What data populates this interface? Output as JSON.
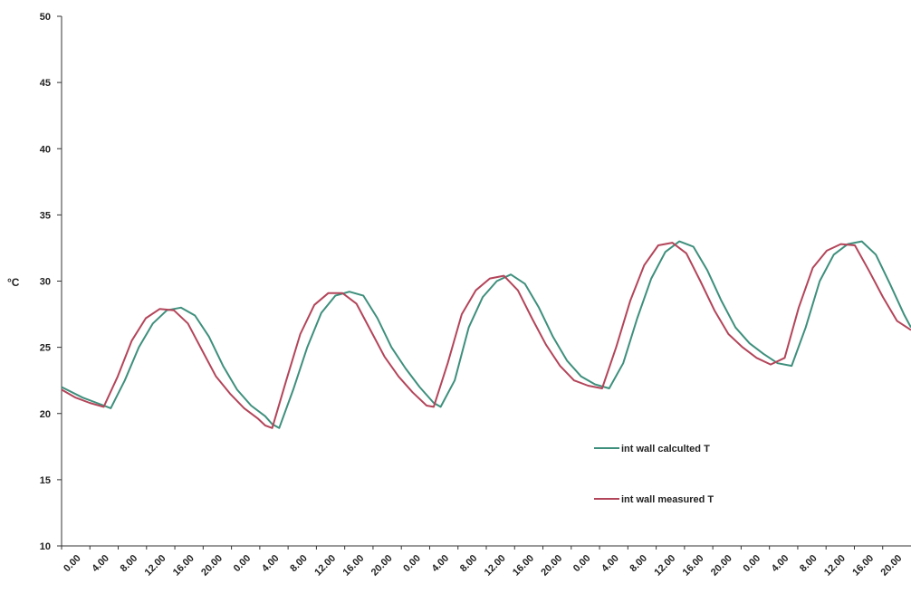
{
  "chart_data": {
    "type": "line",
    "title": "",
    "xlabel": "",
    "ylabel": "°C",
    "ylim": [
      10,
      50
    ],
    "yticks": [
      10,
      15,
      20,
      25,
      30,
      35,
      40,
      45,
      50
    ],
    "grid": false,
    "legend_position": "center-right",
    "x_tick_labels": [
      "0.00",
      "4.00",
      "8.00",
      "12.00",
      "16.00",
      "20.00",
      "0.00",
      "4.00",
      "8.00",
      "12.00",
      "16.00",
      "20.00",
      "0.00",
      "4.00",
      "8.00",
      "12.00",
      "16.00",
      "20.00",
      "0.00",
      "4.00",
      "8.00",
      "12.00",
      "16.00",
      "20.00",
      "0.00",
      "4.00",
      "8.00",
      "12.00",
      "16.00",
      "20.00"
    ],
    "x_unit": "hours from first 0.00 tick",
    "series": [
      {
        "name": "int wall calculted T",
        "color": "#3e8f7c",
        "points": [
          [
            0,
            22.0
          ],
          [
            3,
            21.2
          ],
          [
            5,
            20.8
          ],
          [
            7,
            20.4
          ],
          [
            9,
            22.5
          ],
          [
            11,
            25.0
          ],
          [
            13,
            26.8
          ],
          [
            15,
            27.8
          ],
          [
            17,
            28.0
          ],
          [
            19,
            27.4
          ],
          [
            21,
            25.8
          ],
          [
            23,
            23.6
          ],
          [
            25,
            21.8
          ],
          [
            27,
            20.6
          ],
          [
            29,
            19.8
          ],
          [
            30,
            19.2
          ],
          [
            31,
            18.9
          ],
          [
            33,
            21.8
          ],
          [
            35,
            25.0
          ],
          [
            37,
            27.6
          ],
          [
            39,
            28.9
          ],
          [
            41,
            29.2
          ],
          [
            43,
            28.9
          ],
          [
            45,
            27.2
          ],
          [
            47,
            25.0
          ],
          [
            49,
            23.4
          ],
          [
            51,
            22.0
          ],
          [
            53,
            20.8
          ],
          [
            54,
            20.5
          ],
          [
            56,
            22.5
          ],
          [
            58,
            26.5
          ],
          [
            60,
            28.8
          ],
          [
            62,
            30.0
          ],
          [
            64,
            30.5
          ],
          [
            66,
            29.8
          ],
          [
            68,
            28.0
          ],
          [
            70,
            25.8
          ],
          [
            72,
            24.0
          ],
          [
            74,
            22.8
          ],
          [
            76,
            22.2
          ],
          [
            78,
            21.9
          ],
          [
            80,
            23.8
          ],
          [
            82,
            27.2
          ],
          [
            84,
            30.2
          ],
          [
            86,
            32.2
          ],
          [
            88,
            33.0
          ],
          [
            90,
            32.6
          ],
          [
            92,
            30.8
          ],
          [
            94,
            28.5
          ],
          [
            96,
            26.5
          ],
          [
            98,
            25.3
          ],
          [
            100,
            24.5
          ],
          [
            102,
            23.8
          ],
          [
            104,
            23.6
          ],
          [
            106,
            26.5
          ],
          [
            108,
            30.0
          ],
          [
            110,
            32.0
          ],
          [
            112,
            32.8
          ],
          [
            114,
            33.0
          ],
          [
            116,
            32.0
          ],
          [
            118,
            29.8
          ],
          [
            120,
            27.5
          ],
          [
            121,
            26.5
          ]
        ]
      },
      {
        "name": "int wall measured T",
        "color": "#b3455a",
        "points": [
          [
            0,
            21.8
          ],
          [
            2,
            21.2
          ],
          [
            4,
            20.8
          ],
          [
            6,
            20.5
          ],
          [
            8,
            22.8
          ],
          [
            10,
            25.5
          ],
          [
            12,
            27.2
          ],
          [
            14,
            27.9
          ],
          [
            16,
            27.8
          ],
          [
            18,
            26.8
          ],
          [
            20,
            24.8
          ],
          [
            22,
            22.8
          ],
          [
            24,
            21.5
          ],
          [
            26,
            20.4
          ],
          [
            28,
            19.6
          ],
          [
            29,
            19.1
          ],
          [
            30,
            18.9
          ],
          [
            32,
            22.5
          ],
          [
            34,
            26.0
          ],
          [
            36,
            28.2
          ],
          [
            38,
            29.1
          ],
          [
            40,
            29.1
          ],
          [
            42,
            28.3
          ],
          [
            44,
            26.3
          ],
          [
            46,
            24.3
          ],
          [
            48,
            22.8
          ],
          [
            50,
            21.6
          ],
          [
            52,
            20.6
          ],
          [
            53,
            20.5
          ],
          [
            55,
            23.8
          ],
          [
            57,
            27.5
          ],
          [
            59,
            29.3
          ],
          [
            61,
            30.2
          ],
          [
            63,
            30.4
          ],
          [
            65,
            29.3
          ],
          [
            67,
            27.2
          ],
          [
            69,
            25.2
          ],
          [
            71,
            23.6
          ],
          [
            73,
            22.5
          ],
          [
            75,
            22.1
          ],
          [
            77,
            21.9
          ],
          [
            79,
            25.0
          ],
          [
            81,
            28.5
          ],
          [
            83,
            31.2
          ],
          [
            85,
            32.7
          ],
          [
            87,
            32.9
          ],
          [
            89,
            32.1
          ],
          [
            91,
            30.0
          ],
          [
            93,
            27.8
          ],
          [
            95,
            26.0
          ],
          [
            97,
            25.0
          ],
          [
            99,
            24.2
          ],
          [
            101,
            23.7
          ],
          [
            103,
            24.2
          ],
          [
            105,
            28.0
          ],
          [
            107,
            31.0
          ],
          [
            109,
            32.3
          ],
          [
            111,
            32.8
          ],
          [
            113,
            32.7
          ],
          [
            115,
            30.8
          ],
          [
            117,
            28.8
          ],
          [
            119,
            27.0
          ],
          [
            121,
            26.3
          ]
        ]
      }
    ]
  }
}
